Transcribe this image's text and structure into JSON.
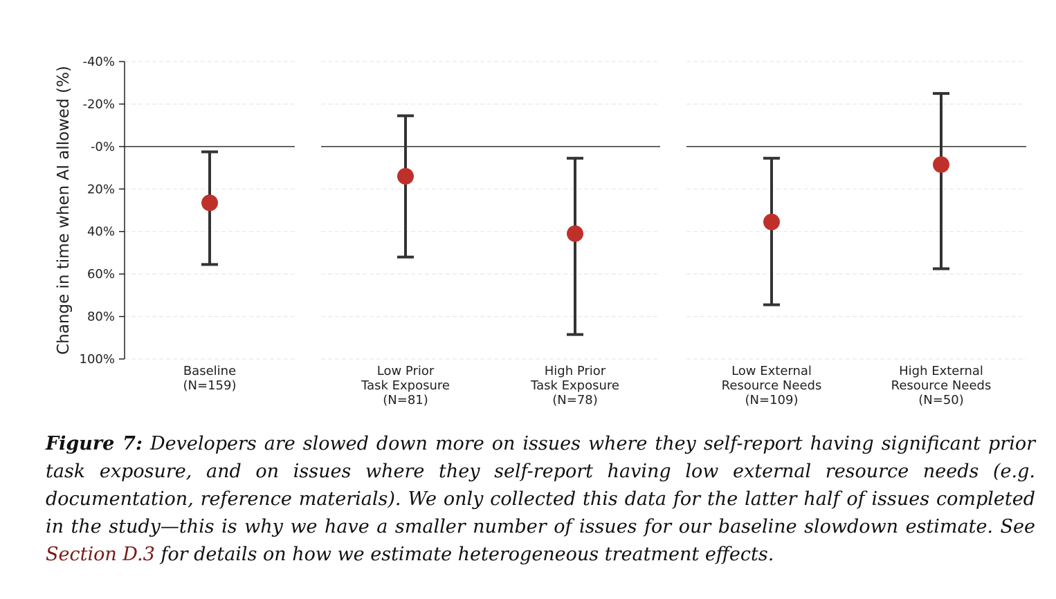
{
  "chart_data": {
    "type": "errorbar",
    "ylabel": "Change in time when AI allowed (%)",
    "y_inverted": true,
    "ylim": [
      -40,
      100
    ],
    "yticks": [
      {
        "value": -40,
        "label": "-40%"
      },
      {
        "value": -20,
        "label": "-20%"
      },
      {
        "value": 0,
        "label": "-0%"
      },
      {
        "value": 20,
        "label": "20%"
      },
      {
        "value": 40,
        "label": "40%"
      },
      {
        "value": 60,
        "label": "60%"
      },
      {
        "value": 80,
        "label": "80%"
      },
      {
        "value": 100,
        "label": "100%"
      }
    ],
    "grid": "horizontal-dashed",
    "reference_line": 0,
    "marker_color": "#c0302a",
    "errorbar_color": "#333333",
    "panels": [
      {
        "points": [
          {
            "label_lines": [
              "Baseline",
              "(N=159)"
            ],
            "estimate": 26.5,
            "ci_low": 2.5,
            "ci_high": 55.5
          }
        ]
      },
      {
        "points": [
          {
            "label_lines": [
              "Low Prior",
              "Task Exposure",
              "(N=81)"
            ],
            "estimate": 14,
            "ci_low": -14.5,
            "ci_high": 52
          },
          {
            "label_lines": [
              "High Prior",
              "Task Exposure",
              "(N=78)"
            ],
            "estimate": 41,
            "ci_low": 5.5,
            "ci_high": 88.5
          }
        ]
      },
      {
        "points": [
          {
            "label_lines": [
              "Low External",
              "Resource Needs",
              "(N=109)"
            ],
            "estimate": 35.5,
            "ci_low": 5.5,
            "ci_high": 74.5
          },
          {
            "label_lines": [
              "High External",
              "Resource Needs",
              "(N=50)"
            ],
            "estimate": 8.5,
            "ci_low": -25,
            "ci_high": 57.5
          }
        ]
      }
    ]
  },
  "caption": {
    "figure_label": "Figure 7:",
    "text_before_link": " Developers are slowed down more on issues where they self-report having significant prior task exposure, and on issues where they self-report having low external resource needs (e.g. documentation, reference materials).  We only collected this data for the latter half of issues completed in the study—this is why we have a smaller number of issues for our baseline slowdown estimate. See ",
    "link_text": "Section D.3",
    "text_after_link": " for details on how we estimate heterogeneous treatment effects."
  }
}
